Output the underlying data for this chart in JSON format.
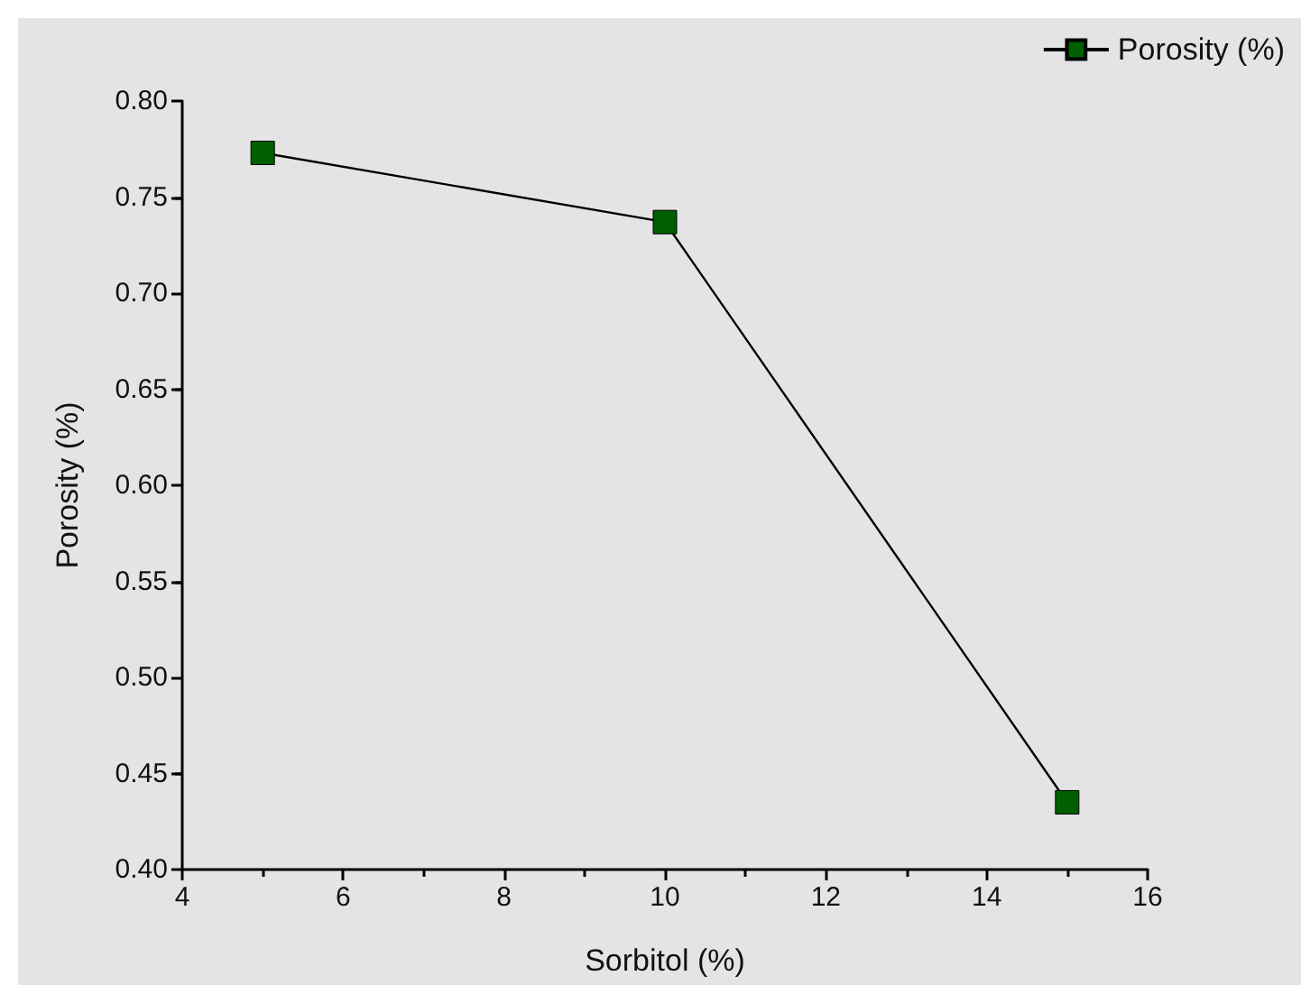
{
  "chart_data": {
    "type": "line",
    "xlabel": "Sorbitol (%)",
    "ylabel": "Porosity (%)",
    "x": [
      5,
      10,
      15
    ],
    "series": [
      {
        "name": "Porosity (%)",
        "color": "#005f00",
        "values": [
          0.773,
          0.737,
          0.435
        ]
      }
    ],
    "xlim": [
      4,
      16
    ],
    "xticks": [
      4,
      6,
      8,
      10,
      12,
      14,
      16
    ],
    "ylim": [
      0.4,
      0.8
    ],
    "yticks": [
      {
        "value": 0.4,
        "label": "0.40"
      },
      {
        "value": 0.45,
        "label": "0.45"
      },
      {
        "value": 0.5,
        "label": "0.50"
      },
      {
        "value": 0.55,
        "label": "0.55"
      },
      {
        "value": 0.6,
        "label": "0.60"
      },
      {
        "value": 0.65,
        "label": "0.65"
      },
      {
        "value": 0.7,
        "label": "0.70"
      },
      {
        "value": 0.75,
        "label": "0.75"
      },
      {
        "value": 0.8,
        "label": "0.80"
      }
    ],
    "grid": false,
    "legend": "top right",
    "marker": "square",
    "line_style": "solid"
  }
}
